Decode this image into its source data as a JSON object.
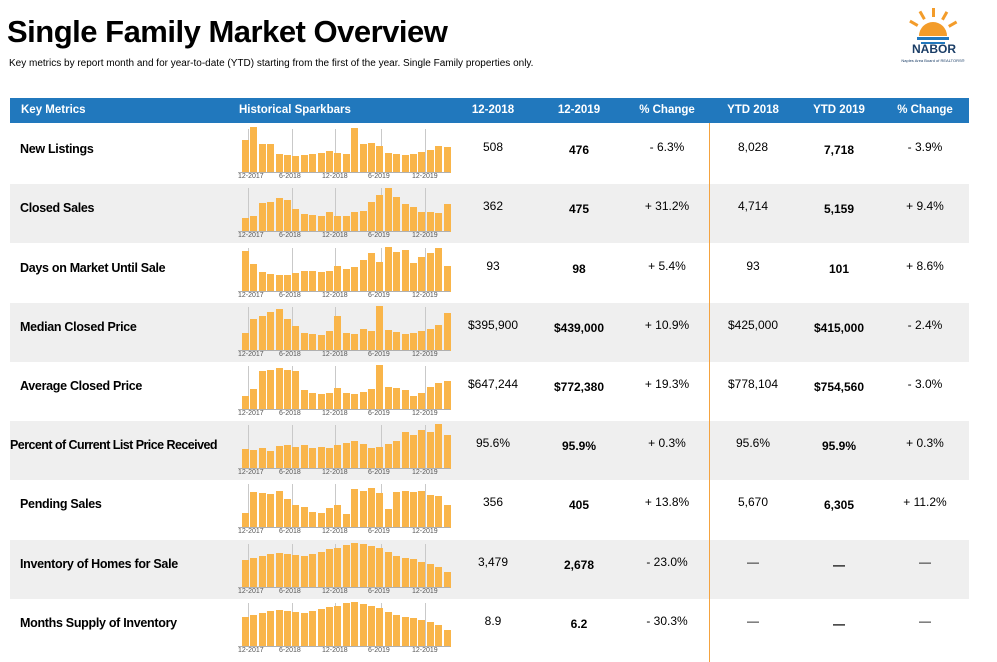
{
  "title": "Single Family Market Overview",
  "subtitle": "Key metrics by report month and for year-to-date (YTD) starting from the first of the year. Single Family properties only.",
  "logo": {
    "name": "NABOR",
    "sub": "Naples Area Board of REALTORS®",
    "icon": "sunrise-logo-icon",
    "colors": {
      "sun": "#f39c2a",
      "water": "#2178bd"
    }
  },
  "colors": {
    "header": "#2178bd",
    "bar": "#f9b54a",
    "shade": "#efefef",
    "divider": "#f4a340"
  },
  "header": {
    "key_metrics": "Key Metrics",
    "sparkbars": "Historical Sparkbars",
    "col1": "12-2018",
    "col2": "12-2019",
    "col3": "% Change",
    "col4": "YTD 2018",
    "col5": "YTD 2019",
    "col6": "% Change"
  },
  "spark_labels": [
    "12-2017",
    "6-2018",
    "12-2018",
    "6-2019",
    "12-2019"
  ],
  "rows": [
    {
      "label": "New Listings",
      "v1": "508",
      "v2": "476",
      "c1": "- 6.3%",
      "y1": "8,028",
      "y2": "7,718",
      "c2": "- 3.9%",
      "spark": [
        0.72,
        1.0,
        0.62,
        0.62,
        0.42,
        0.4,
        0.38,
        0.4,
        0.42,
        0.44,
        0.48,
        0.44,
        0.42,
        0.98,
        0.62,
        0.66,
        0.58,
        0.44,
        0.42,
        0.4,
        0.42,
        0.46,
        0.5,
        0.58,
        0.56
      ]
    },
    {
      "label": "Closed Sales",
      "v1": "362",
      "v2": "475",
      "c1": "+ 31.2%",
      "y1": "4,714",
      "y2": "5,159",
      "c2": "+ 9.4%",
      "spark": [
        0.3,
        0.34,
        0.64,
        0.66,
        0.74,
        0.7,
        0.5,
        0.4,
        0.38,
        0.34,
        0.44,
        0.34,
        0.34,
        0.44,
        0.46,
        0.66,
        0.8,
        0.96,
        0.76,
        0.6,
        0.54,
        0.44,
        0.44,
        0.42,
        0.6
      ]
    },
    {
      "label": "Days on Market Until Sale",
      "v1": "93",
      "v2": "98",
      "c1": "+ 5.4%",
      "y1": "93",
      "y2": "101",
      "c2": "+ 8.6%",
      "spark": [
        0.9,
        0.6,
        0.44,
        0.4,
        0.38,
        0.36,
        0.42,
        0.46,
        0.46,
        0.44,
        0.46,
        0.56,
        0.5,
        0.54,
        0.7,
        0.84,
        0.66,
        0.98,
        0.86,
        0.92,
        0.62,
        0.76,
        0.84,
        0.96,
        0.56
      ]
    },
    {
      "label": "Median Closed Price",
      "v1": "$395,900",
      "v2": "$439,000",
      "c1": "+ 10.9%",
      "y1": "$425,000",
      "y2": "$415,000",
      "c2": "- 2.4%",
      "spark": [
        0.4,
        0.7,
        0.76,
        0.84,
        0.92,
        0.7,
        0.54,
        0.4,
        0.38,
        0.34,
        0.44,
        0.76,
        0.4,
        0.36,
        0.48,
        0.44,
        0.98,
        0.46,
        0.42,
        0.38,
        0.4,
        0.44,
        0.48,
        0.56,
        0.82
      ]
    },
    {
      "label": "Average Closed Price",
      "v1": "$647,244",
      "v2": "$772,380",
      "c1": "+ 19.3%",
      "y1": "$778,104",
      "y2": "$754,560",
      "c2": "- 3.0%",
      "spark": [
        0.3,
        0.46,
        0.84,
        0.86,
        0.92,
        0.86,
        0.84,
        0.44,
        0.36,
        0.34,
        0.38,
        0.48,
        0.36,
        0.34,
        0.4,
        0.46,
        0.98,
        0.5,
        0.48,
        0.44,
        0.3,
        0.36,
        0.5,
        0.58,
        0.62
      ]
    },
    {
      "label": "Percent of Current List Price Received",
      "v1": "95.6%",
      "v2": "95.9%",
      "c1": "+ 0.3%",
      "y1": "95.6%",
      "y2": "95.9%",
      "c2": "+ 0.3%",
      "spark": [
        0.44,
        0.42,
        0.46,
        0.4,
        0.5,
        0.52,
        0.48,
        0.52,
        0.46,
        0.48,
        0.46,
        0.52,
        0.56,
        0.6,
        0.54,
        0.46,
        0.48,
        0.54,
        0.6,
        0.8,
        0.74,
        0.84,
        0.8,
        0.98,
        0.74
      ]
    },
    {
      "label": "Pending Sales",
      "v1": "356",
      "v2": "405",
      "c1": "+ 13.8%",
      "y1": "5,670",
      "y2": "6,305",
      "c2": "+ 11.2%",
      "spark": [
        0.32,
        0.78,
        0.76,
        0.74,
        0.8,
        0.62,
        0.5,
        0.46,
        0.34,
        0.32,
        0.44,
        0.5,
        0.3,
        0.84,
        0.8,
        0.86,
        0.76,
        0.42,
        0.78,
        0.8,
        0.78,
        0.8,
        0.72,
        0.7,
        0.5
      ]
    },
    {
      "label": "Inventory of Homes for Sale",
      "v1": "3,479",
      "v2": "2,678",
      "c1": "- 23.0%",
      "y1": "—",
      "y2": "—",
      "c2": "—",
      "spark": [
        0.6,
        0.66,
        0.7,
        0.74,
        0.76,
        0.74,
        0.72,
        0.7,
        0.74,
        0.78,
        0.84,
        0.88,
        0.94,
        0.98,
        0.96,
        0.92,
        0.86,
        0.78,
        0.7,
        0.66,
        0.62,
        0.56,
        0.52,
        0.46,
        0.34
      ]
    },
    {
      "label": "Months Supply of Inventory",
      "v1": "8.9",
      "v2": "6.2",
      "c1": "- 30.3%",
      "y1": "—",
      "y2": "—",
      "c2": "—",
      "spark": [
        0.66,
        0.7,
        0.74,
        0.78,
        0.8,
        0.78,
        0.76,
        0.74,
        0.78,
        0.82,
        0.86,
        0.9,
        0.96,
        0.98,
        0.94,
        0.9,
        0.84,
        0.76,
        0.7,
        0.66,
        0.62,
        0.58,
        0.54,
        0.48,
        0.38
      ]
    }
  ]
}
